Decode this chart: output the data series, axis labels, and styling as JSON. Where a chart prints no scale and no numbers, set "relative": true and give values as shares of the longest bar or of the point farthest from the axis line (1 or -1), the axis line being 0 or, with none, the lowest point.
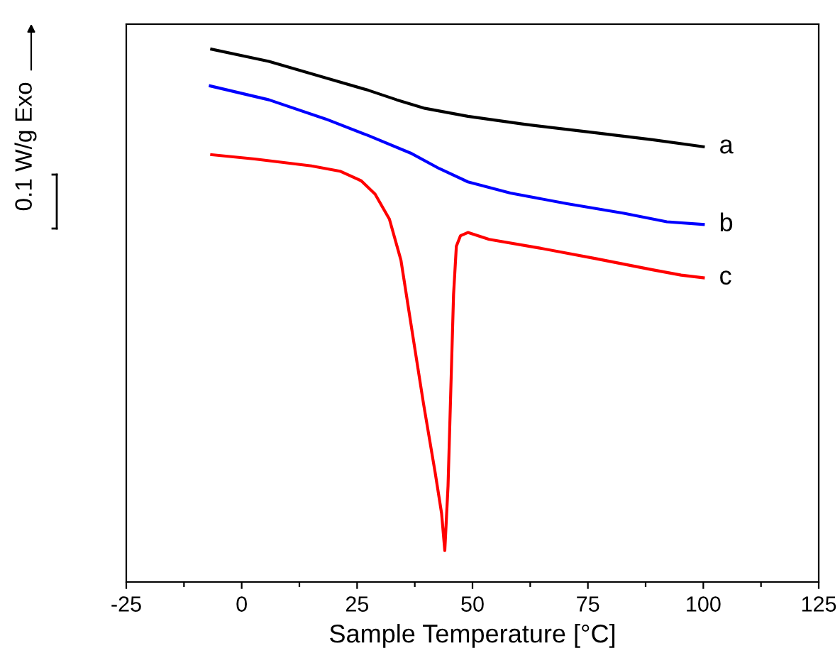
{
  "chart_data": {
    "type": "line",
    "relative": true,
    "xlabel": "Sample Temperature [°C]",
    "annotations": [
      "0.1 W/g",
      "Exo"
    ],
    "xlim": [
      -25,
      125
    ],
    "xticks": [
      -25,
      {
        "value": -12.5,
        "label": null
      },
      0,
      {
        "value": 12.5,
        "label": null
      },
      25,
      {
        "value": 37.5,
        "label": null
      },
      50,
      {
        "value": 62.5,
        "label": null
      },
      75,
      {
        "value": 87.5,
        "label": null
      },
      100,
      {
        "value": 112.5,
        "label": null
      },
      125
    ],
    "tick_labels": "x",
    "grid": false,
    "legend": false,
    "marker": "none",
    "line_style": "solid",
    "series": [
      {
        "name": "a",
        "color": "#000000",
        "x": [
          -6.5,
          5.9,
          18.2,
          27.4,
          33.6,
          39.7,
          49.0,
          61.3,
          76.7,
          89.0,
          100
        ],
        "values": [
          1.0,
          0.977,
          0.946,
          0.923,
          0.905,
          0.889,
          0.874,
          0.859,
          0.843,
          0.83,
          0.817
        ]
      },
      {
        "name": "b",
        "color": "#0000ff",
        "x": [
          -6.8,
          5.9,
          18.2,
          27.4,
          36.6,
          42.8,
          49.0,
          58.2,
          70.5,
          82.8,
          92.1,
          100
        ],
        "values": [
          0.931,
          0.905,
          0.869,
          0.838,
          0.805,
          0.776,
          0.751,
          0.73,
          0.71,
          0.692,
          0.676,
          0.671
        ]
      },
      {
        "name": "c",
        "color": "#ff0000",
        "x": [
          -6.5,
          2.8,
          15.1,
          21.3,
          25.9,
          28.9,
          32.0,
          34.5,
          36.6,
          39.4,
          41.9,
          43.3,
          44.0,
          44.7,
          45.3,
          45.9,
          46.5,
          47.4,
          49.0,
          53.6,
          64.4,
          76.7,
          89.0,
          95.2,
          100
        ],
        "values": [
          0.802,
          0.794,
          0.781,
          0.771,
          0.753,
          0.728,
          0.681,
          0.604,
          0.488,
          0.334,
          0.206,
          0.129,
          0.059,
          0.18,
          0.36,
          0.54,
          0.63,
          0.65,
          0.656,
          0.643,
          0.627,
          0.607,
          0.586,
          0.576,
          0.571
        ]
      }
    ]
  }
}
